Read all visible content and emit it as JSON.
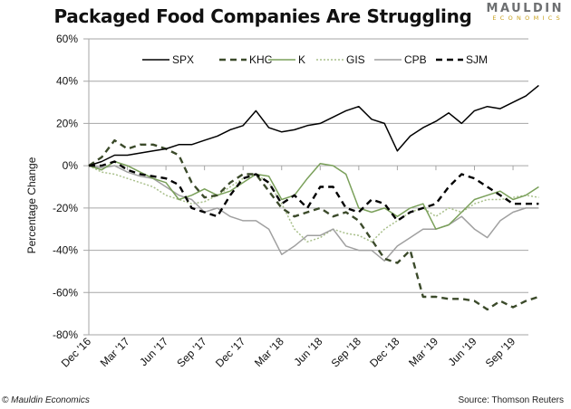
{
  "header": {
    "title": "Packaged Food Companies Are Struggling",
    "logo_top": "MAULDIN",
    "logo_bottom": "ECONOMICS"
  },
  "footer": {
    "copyright": "© Mauldin Economics",
    "source": "Source: Thomson Reuters"
  },
  "chart_data": {
    "type": "line",
    "title": "Packaged Food Companies Are Struggling",
    "xlabel": "",
    "ylabel": "Percentage Change",
    "ylim": [
      -80,
      60
    ],
    "yticks": [
      60,
      40,
      20,
      0,
      -20,
      -40,
      -60,
      -80
    ],
    "ytick_labels": [
      "60%",
      "40%",
      "20%",
      "0%",
      "-20%",
      "-40%",
      "-60%",
      "-80%"
    ],
    "xtick_labels": [
      "Dec '16",
      "Mar '17",
      "Jun '17",
      "Sep '17",
      "Dec '17",
      "Mar '18",
      "Jun '18",
      "Sep '18",
      "Dec '18",
      "Mar '19",
      "Jun '19",
      "Sep '19"
    ],
    "x_months": [
      "Dec '16",
      "Jan '17",
      "Feb '17",
      "Mar '17",
      "Apr '17",
      "May '17",
      "Jun '17",
      "Jul '17",
      "Aug '17",
      "Sep '17",
      "Oct '17",
      "Nov '17",
      "Dec '17",
      "Jan '18",
      "Feb '18",
      "Mar '18",
      "Apr '18",
      "May '18",
      "Jun '18",
      "Jul '18",
      "Aug '18",
      "Sep '18",
      "Oct '18",
      "Nov '18",
      "Dec '18",
      "Jan '19",
      "Feb '19",
      "Mar '19",
      "Apr '19",
      "May '19",
      "Jun '19",
      "Jul '19",
      "Aug '19",
      "Sep '19",
      "Oct '19",
      "Nov '19"
    ],
    "grid": true,
    "legend_position": "top",
    "series": [
      {
        "name": "SPX",
        "color": "#000000",
        "style": "solid",
        "values": [
          0,
          2,
          5,
          5,
          6,
          7,
          8,
          10,
          10,
          12,
          14,
          17,
          19,
          26,
          18,
          16,
          17,
          19,
          20,
          23,
          26,
          28,
          22,
          20,
          7,
          14,
          18,
          21,
          25,
          20,
          26,
          28,
          27,
          30,
          33,
          38
        ]
      },
      {
        "name": "KHC",
        "color": "#3b4a2a",
        "style": "dashed",
        "values": [
          0,
          4,
          12,
          8,
          10,
          10,
          8,
          5,
          -8,
          -15,
          -14,
          -8,
          -4,
          -4,
          -12,
          -20,
          -24,
          -22,
          -20,
          -24,
          -22,
          -26,
          -35,
          -44,
          -46,
          -40,
          -62,
          -62,
          -63,
          -63,
          -64,
          -68,
          -64,
          -67,
          -64,
          -62
        ]
      },
      {
        "name": "K",
        "color": "#7aa05a",
        "style": "solid",
        "values": [
          0,
          -2,
          2,
          0,
          -3,
          -6,
          -8,
          -16,
          -14,
          -11,
          -14,
          -12,
          -8,
          -4,
          -5,
          -16,
          -14,
          -6,
          1,
          0,
          -4,
          -20,
          -22,
          -20,
          -24,
          -20,
          -18,
          -30,
          -28,
          -22,
          -16,
          -14,
          -12,
          -16,
          -14,
          -10
        ]
      },
      {
        "name": "GIS",
        "color": "#a8bf8a",
        "style": "dotted",
        "values": [
          0,
          -3,
          -4,
          -6,
          -8,
          -10,
          -14,
          -16,
          -18,
          -17,
          -14,
          -10,
          -6,
          -4,
          -8,
          -18,
          -30,
          -36,
          -34,
          -30,
          -32,
          -33,
          -36,
          -30,
          -26,
          -22,
          -20,
          -24,
          -20,
          -22,
          -18,
          -16,
          -16,
          -15,
          -14,
          -15
        ]
      },
      {
        "name": "CPB",
        "color": "#a0a0a0",
        "style": "solid",
        "values": [
          0,
          -1,
          0,
          -3,
          -5,
          -6,
          -10,
          -14,
          -16,
          -22,
          -20,
          -24,
          -26,
          -26,
          -30,
          -42,
          -38,
          -33,
          -33,
          -30,
          -38,
          -40,
          -40,
          -45,
          -38,
          -34,
          -30,
          -30,
          -28,
          -24,
          -30,
          -34,
          -26,
          -22,
          -20,
          -20
        ]
      },
      {
        "name": "SJM",
        "color": "#000000",
        "style": "dashed",
        "values": [
          0,
          0,
          2,
          -2,
          -4,
          -5,
          -6,
          -9,
          -20,
          -22,
          -24,
          -14,
          -6,
          -4,
          -8,
          -18,
          -14,
          -20,
          -10,
          -10,
          -20,
          -22,
          -16,
          -18,
          -26,
          -22,
          -20,
          -18,
          -10,
          -4,
          -6,
          -10,
          -14,
          -18,
          -18,
          -18
        ]
      }
    ]
  }
}
